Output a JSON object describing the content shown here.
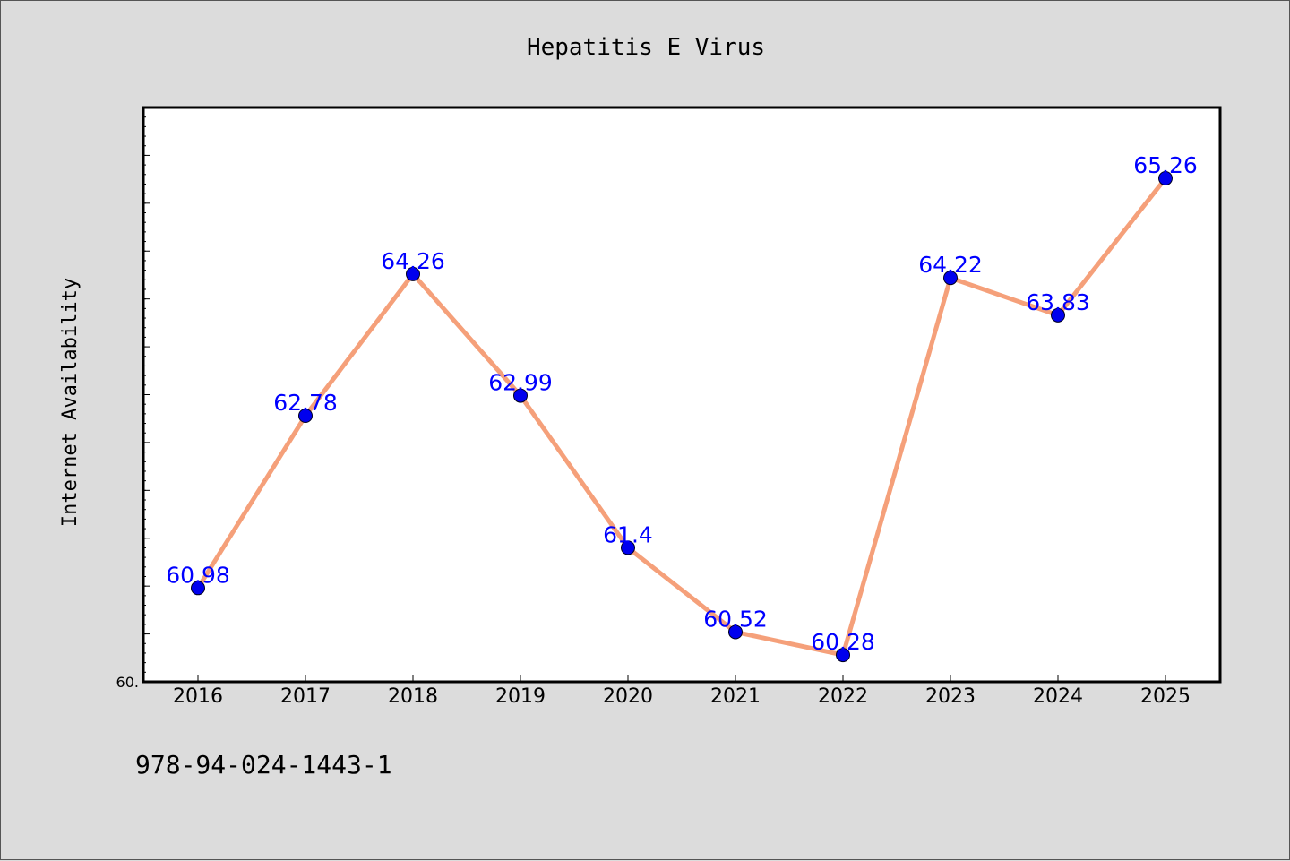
{
  "chart_data": {
    "type": "line",
    "title": "Hepatitis E Virus",
    "xlabel": "",
    "ylabel": "Internet Availability",
    "categories": [
      "2016",
      "2017",
      "2018",
      "2019",
      "2020",
      "2021",
      "2022",
      "2023",
      "2024",
      "2025"
    ],
    "series": [
      {
        "values": [
          60.98,
          62.78,
          64.26,
          62.99,
          61.4,
          60.52,
          60.28,
          64.22,
          63.83,
          65.26
        ]
      }
    ],
    "data_labels": [
      "60.98",
      "62.78",
      "64.26",
      "62.99",
      "61.4",
      "60.52",
      "60.28",
      "64.22",
      "63.83",
      "65.26"
    ],
    "ylim": [
      60,
      66
    ],
    "y_tick_label": "60.",
    "grid": false,
    "legend": "none"
  },
  "footer": {
    "code": "978-94-024-1443-1"
  },
  "colors": {
    "background": "#dcdcdc",
    "plot_area": "#ffffff",
    "line": "#f5a07a",
    "marker": "#0000ee",
    "label": "#0000ff"
  }
}
